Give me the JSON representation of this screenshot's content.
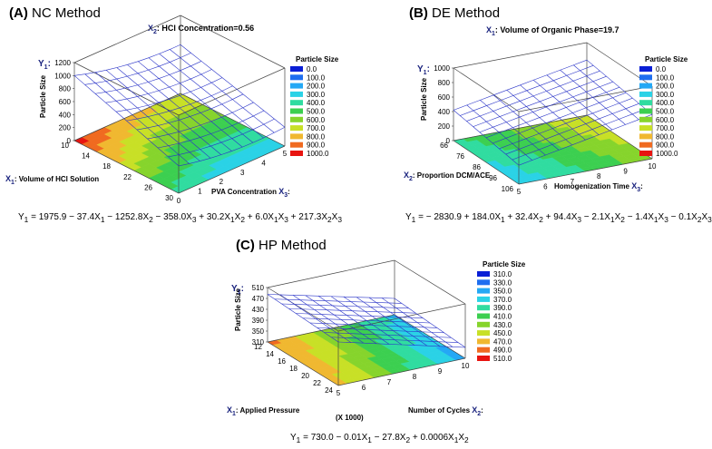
{
  "chart_data": [
    {
      "type": "surface",
      "panel_label": "(A)",
      "title": "NC Method",
      "fixed_var": "X",
      "fixed_sub": "2",
      "fixed_text": ": HCl Concentration=0.56",
      "y_var": "Y",
      "y_sub": "1",
      "zlabel": "Particle Size",
      "z_ticks": [
        "0",
        "200",
        "400",
        "600",
        "800",
        "1000",
        "1200"
      ],
      "x1_var": "X",
      "x1_sub": "1",
      "x1_label": ": Volume of HCl Solution",
      "x1_ticks": [
        "10",
        "14",
        "18",
        "22",
        "26",
        "30"
      ],
      "x2_label": "PVA Concentration",
      "x2_var": "X",
      "x2_sub": "3",
      "x2_ticks": [
        "0",
        "1",
        "2",
        "3",
        "4",
        "5"
      ],
      "legend_title": "Particle Size",
      "legend": [
        "0.0",
        "100.0",
        "200.0",
        "300.0",
        "400.0",
        "500.0",
        "600.0",
        "700.0",
        "800.0",
        "900.0",
        "1000.0"
      ],
      "legend_colors": [
        "#0a1fd6",
        "#1e6ef0",
        "#24a8f5",
        "#2ad2e6",
        "#30dca0",
        "#3ccf50",
        "#86d42c",
        "#c8e026",
        "#f0b830",
        "#f06a20",
        "#e81410"
      ],
      "equation": "Y1 = 1975.9 − 37.4X1 − 1252.8X2 − 358.0X3 + 30.2X1X2 + 6.0X1X3 + 217.3X2X3",
      "ranges": {
        "x1": [
          10,
          30
        ],
        "x3": [
          0,
          5
        ],
        "z": [
          0,
          1200
        ]
      },
      "surface_corners": {
        "x1min_x3min": 1000,
        "x1max_x3min": 420,
        "x1min_x3max": 750,
        "x1max_x3max": 290
      }
    },
    {
      "type": "surface",
      "panel_label": "(B)",
      "title": "DE Method",
      "fixed_var": "X",
      "fixed_sub": "1",
      "fixed_text": ": Volume of Organic Phase=19.7",
      "y_var": "Y",
      "y_sub": "1",
      "zlabel": "Particle Size",
      "z_ticks": [
        "0",
        "200",
        "400",
        "600",
        "800",
        "1000"
      ],
      "x1_var": "X",
      "x1_sub": "2",
      "x1_label": ": Proportion DCM/ACE",
      "x1_ticks": [
        "66",
        "76",
        "86",
        "96",
        "106"
      ],
      "x2_label": "Homogenization Time",
      "x2_var": "X",
      "x2_sub": "3",
      "x2_ticks": [
        "5",
        "6",
        "7",
        "8",
        "9",
        "10"
      ],
      "legend_title": "Particle Size",
      "legend": [
        "0.0",
        "100.0",
        "200.0",
        "300.0",
        "400.0",
        "500.0",
        "600.0",
        "700.0",
        "800.0",
        "900.0",
        "1000.0"
      ],
      "legend_colors": [
        "#0a1fd6",
        "#1e6ef0",
        "#24a8f5",
        "#2ad2e6",
        "#30dca0",
        "#3ccf50",
        "#86d42c",
        "#c8e026",
        "#f0b830",
        "#f06a20",
        "#e81410"
      ],
      "equation": "Y1 = − 2830.9 + 184.0X1 + 32.4X2 + 94.4X3 − 2.1X1X2 − 1.4X1X3 − 0.1X2X3",
      "ranges": {
        "x2": [
          66,
          106
        ],
        "x3": [
          5,
          10
        ],
        "z": [
          0,
          1000
        ]
      },
      "surface_corners": {
        "x2min_x3min": 420,
        "x2max_x3min": 260,
        "x2min_x3max": 760,
        "x2max_x3max": 610
      }
    },
    {
      "type": "surface",
      "panel_label": "(C)",
      "title": "HP Method",
      "fixed_var": "",
      "fixed_sub": "",
      "fixed_text": "",
      "y_var": "Y",
      "y_sub": "1",
      "zlabel": "Particle Size",
      "z_ticks": [
        "310",
        "350",
        "390",
        "430",
        "470",
        "510"
      ],
      "x1_var": "X",
      "x1_sub": "1",
      "x1_label": ": Applied Pressure",
      "x1_ticks": [
        "12",
        "14",
        "16",
        "18",
        "20",
        "22",
        "24"
      ],
      "x1_extra": "(X 1000)",
      "x2_label": "Number of Cycles",
      "x2_var": "X",
      "x2_sub": "2",
      "x2_ticks": [
        "5",
        "6",
        "7",
        "8",
        "9",
        "10"
      ],
      "legend_title": "Particle Size",
      "legend": [
        "310.0",
        "330.0",
        "350.0",
        "370.0",
        "390.0",
        "410.0",
        "430.0",
        "450.0",
        "470.0",
        "490.0",
        "510.0"
      ],
      "legend_colors": [
        "#0a1fd6",
        "#1e6ef0",
        "#24a8f5",
        "#2ad2e6",
        "#30dca0",
        "#3ccf50",
        "#86d42c",
        "#c8e026",
        "#f0b830",
        "#f06a20",
        "#e81410"
      ],
      "equation": "Y1 = 730.0 − 0.01X1 − 27.8X2 + 0.0006X1X2",
      "ranges": {
        "x1": [
          12000,
          24000
        ],
        "x2": [
          5,
          10
        ],
        "z": [
          310,
          510
        ]
      },
      "surface_corners": {
        "x1min_x2min": 485,
        "x1max_x2min": 470,
        "x1min_x2max": 370,
        "x1max_x2max": 350
      }
    }
  ]
}
